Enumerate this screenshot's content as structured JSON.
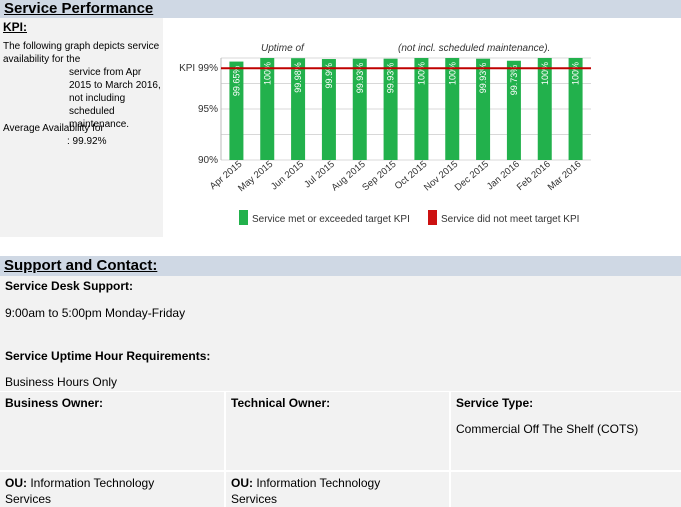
{
  "sections": {
    "performance_title": "Service Performance",
    "support_title": "Support and Contact:"
  },
  "kpi": {
    "label": "KPI:",
    "description_1": "The following graph depicts service availability for the",
    "description_2": "service from Apr 2015 to March 2016, not including scheduled maintenance.",
    "avg_label": "Average Availability for",
    "avg_value": ": 99.92%"
  },
  "chart_data": {
    "type": "bar",
    "title_left": "Uptime of",
    "title_right": "(not incl. scheduled maintenance).",
    "categories": [
      "Apr 2015",
      "May 2015",
      "Jun 2015",
      "Jul 2015",
      "Aug 2015",
      "Sep 2015",
      "Oct 2015",
      "Nov 2015",
      "Dec 2015",
      "Jan 2016",
      "Feb 2016",
      "Mar 2016"
    ],
    "values": [
      99.65,
      100,
      99.98,
      99.9,
      99.93,
      99.93,
      100,
      100,
      99.93,
      99.73,
      100,
      100
    ],
    "value_labels": [
      "99.65%",
      "100%",
      "99.98%",
      "99.9%",
      "99.93%",
      "99.93%",
      "100%",
      "100%",
      "99.93%",
      "99.73%",
      "100%",
      "100%"
    ],
    "ylim": [
      90,
      100
    ],
    "yticks": [
      {
        "value": 99,
        "label": "KPI 99%"
      },
      {
        "value": 95,
        "label": "95%"
      },
      {
        "value": 90,
        "label": "90%"
      }
    ],
    "kpi_target": 99,
    "grid": true,
    "legend": [
      {
        "label": "Service met or exceeded target KPI",
        "color": "#22b14c"
      },
      {
        "label": "Service did not meet target KPI",
        "color": "#cc1111"
      }
    ],
    "colors": {
      "met": "#22b14c",
      "kpi_line": "#c00000"
    }
  },
  "support": {
    "desk_label": "Service Desk Support:",
    "desk_hours": "9:00am to 5:00pm Monday-Friday",
    "uptime_label": "Service Uptime Hour Requirements:",
    "uptime_value": "Business Hours Only",
    "business_owner_label": "Business Owner:",
    "technical_owner_label": "Technical Owner:",
    "service_type_label": "Service Type:",
    "service_type_value": "Commercial Off The Shelf (COTS)",
    "ou_label": "OU:",
    "ou_business_value": " Information Technology",
    "ou_business_value_2": "Services",
    "ou_technical_value": " Information Technology",
    "ou_technical_value_2": "Services"
  }
}
